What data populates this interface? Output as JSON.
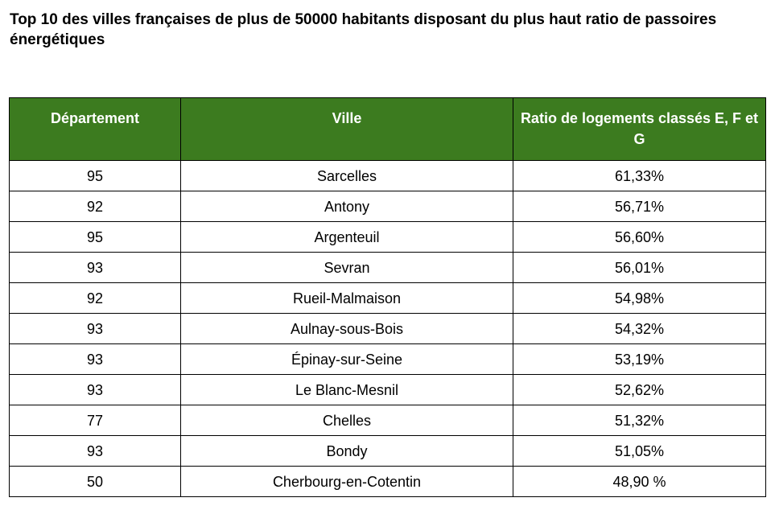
{
  "title": "Top 10 des villes françaises de plus de 50000 habitants disposant du plus haut ratio de passoires énergétiques",
  "colors": {
    "header_bg": "#3c7b1f",
    "header_text": "#ffffff",
    "border": "#000000"
  },
  "table": {
    "headers": [
      "Département",
      "Ville",
      "Ratio de logements classés E, F et G"
    ],
    "rows": [
      [
        "95",
        "Sarcelles",
        "61,33%"
      ],
      [
        "92",
        "Antony",
        "56,71%"
      ],
      [
        "95",
        "Argenteuil",
        "56,60%"
      ],
      [
        "93",
        "Sevran",
        "56,01%"
      ],
      [
        "92",
        "Rueil-Malmaison",
        "54,98%"
      ],
      [
        "93",
        "Aulnay-sous-Bois",
        "54,32%"
      ],
      [
        "93",
        "Épinay-sur-Seine",
        "53,19%"
      ],
      [
        "93",
        "Le Blanc-Mesnil",
        "52,62%"
      ],
      [
        "77",
        "Chelles",
        "51,32%"
      ],
      [
        "93",
        "Bondy",
        "51,05%"
      ],
      [
        "50",
        "Cherbourg-en-Cotentin",
        "48,90 %"
      ]
    ]
  }
}
